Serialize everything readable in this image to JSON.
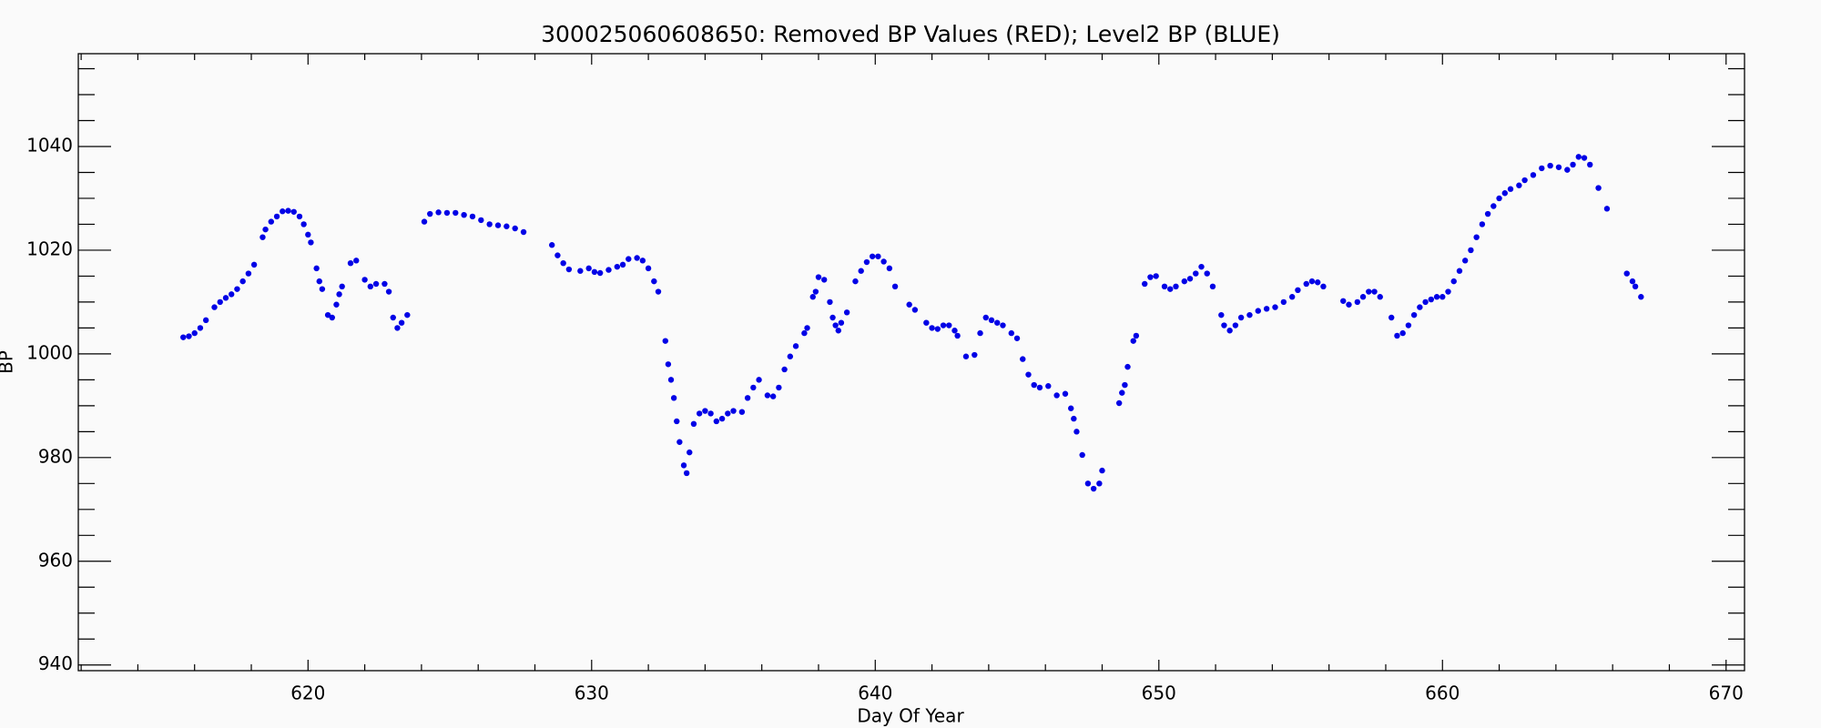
{
  "chart_data": {
    "type": "scatter",
    "title": "300025060608650: Removed BP Values (RED); Level2 BP (BLUE)",
    "xlabel": "Day Of Year",
    "ylabel": "BP",
    "xlim": [
      611.9,
      670.65
    ],
    "ylim": [
      938.9,
      1057.9
    ],
    "xticks": [
      620,
      630,
      640,
      650,
      660,
      670
    ],
    "yticks": [
      940,
      960,
      980,
      1000,
      1020,
      1040
    ],
    "xminorticks": [
      612,
      614,
      616,
      618,
      622,
      624,
      626,
      628,
      632,
      634,
      636,
      638,
      642,
      644,
      646,
      648,
      652,
      654,
      656,
      658,
      662,
      664,
      666,
      668
    ],
    "yminorticks": [
      945,
      950,
      955,
      965,
      970,
      975,
      985,
      990,
      995,
      1005,
      1010,
      1015,
      1025,
      1030,
      1035,
      1045,
      1050,
      1055
    ],
    "grid": false,
    "series": [
      {
        "color": "#0000e6",
        "x": [
          615.6,
          615.8,
          616.0,
          616.2,
          616.4,
          616.7,
          616.9,
          617.1,
          617.3,
          617.5,
          617.7,
          617.9,
          618.1,
          618.4,
          618.5,
          618.7,
          618.9,
          619.1,
          619.3,
          619.5,
          619.7,
          619.85,
          620.0,
          620.1,
          620.3,
          620.4,
          620.5,
          620.7,
          620.85,
          621.0,
          621.1,
          621.2,
          621.5,
          621.7,
          622.0,
          622.2,
          622.4,
          622.7,
          622.85,
          623.0,
          623.15,
          623.3,
          623.5,
          624.1,
          624.3,
          624.6,
          624.9,
          625.2,
          625.5,
          625.8,
          626.1,
          626.4,
          626.7,
          627.0,
          627.3,
          627.6,
          628.6,
          628.8,
          629.0,
          629.2,
          629.6,
          629.9,
          630.1,
          630.3,
          630.6,
          630.9,
          631.1,
          631.3,
          631.6,
          631.8,
          632.0,
          632.2,
          632.35,
          632.6,
          632.7,
          632.8,
          632.9,
          633.0,
          633.1,
          633.25,
          633.35,
          633.45,
          633.6,
          633.8,
          634.0,
          634.2,
          634.4,
          634.6,
          634.8,
          635.0,
          635.3,
          635.5,
          635.7,
          635.9,
          636.2,
          636.4,
          636.6,
          636.8,
          637.0,
          637.2,
          637.5,
          637.6,
          637.8,
          637.9,
          638.0,
          638.2,
          638.4,
          638.5,
          638.6,
          638.7,
          638.8,
          639.0,
          639.3,
          639.5,
          639.7,
          639.9,
          640.1,
          640.3,
          640.5,
          640.7,
          641.2,
          641.4,
          641.8,
          642.0,
          642.2,
          642.4,
          642.6,
          642.8,
          642.9,
          643.2,
          643.5,
          643.7,
          643.9,
          644.1,
          644.3,
          644.5,
          644.8,
          645.0,
          645.2,
          645.4,
          645.6,
          645.8,
          646.1,
          646.4,
          646.7,
          646.9,
          647.0,
          647.1,
          647.3,
          647.5,
          647.7,
          647.9,
          648.0,
          648.6,
          648.7,
          648.8,
          648.9,
          649.1,
          649.2,
          649.5,
          649.7,
          649.9,
          650.2,
          650.4,
          650.6,
          650.9,
          651.1,
          651.3,
          651.5,
          651.7,
          651.9,
          652.2,
          652.3,
          652.5,
          652.7,
          652.9,
          653.2,
          653.5,
          653.8,
          654.1,
          654.4,
          654.7,
          654.9,
          655.2,
          655.4,
          655.6,
          655.8,
          656.5,
          656.7,
          657.0,
          657.2,
          657.4,
          657.6,
          657.8,
          658.2,
          658.4,
          658.6,
          658.8,
          659.0,
          659.2,
          659.4,
          659.6,
          659.8,
          660.0,
          660.2,
          660.4,
          660.6,
          660.8,
          661.0,
          661.2,
          661.4,
          661.6,
          661.8,
          662.0,
          662.2,
          662.4,
          662.7,
          662.9,
          663.2,
          663.5,
          663.8,
          664.1,
          664.4,
          664.6,
          664.8,
          665.0,
          665.2,
          665.5,
          665.8,
          666.5,
          666.7,
          666.8,
          667.0
        ],
        "values": [
          1003.2,
          1003.4,
          1004,
          1005,
          1006.5,
          1009,
          1010,
          1010.8,
          1011.5,
          1012.5,
          1014,
          1015.5,
          1017.2,
          1022.5,
          1024,
          1025.5,
          1026.5,
          1027.5,
          1027.6,
          1027.4,
          1026.5,
          1025,
          1023,
          1021.5,
          1016.5,
          1014,
          1012.5,
          1007.5,
          1007,
          1009.5,
          1011.5,
          1013,
          1017.5,
          1018,
          1014.3,
          1013,
          1013.5,
          1013.5,
          1012,
          1007,
          1005,
          1006,
          1007.5,
          1025.5,
          1027,
          1027.3,
          1027.2,
          1027.2,
          1026.8,
          1026.5,
          1025.8,
          1025,
          1024.8,
          1024.6,
          1024.2,
          1023.5,
          1021,
          1019,
          1017.5,
          1016.3,
          1016,
          1016.5,
          1015.8,
          1015.6,
          1016.2,
          1016.8,
          1017.2,
          1018.3,
          1018.5,
          1018,
          1016.5,
          1014,
          1012,
          1002.5,
          998,
          995,
          991.5,
          987,
          983,
          978.5,
          977,
          981,
          986.5,
          988.5,
          989,
          988.5,
          987,
          987.5,
          988.5,
          989,
          988.8,
          991.5,
          993.5,
          995,
          992,
          991.8,
          993.5,
          997,
          999.5,
          1001.5,
          1004,
          1005,
          1011,
          1012,
          1014.8,
          1014.3,
          1010,
          1007,
          1005.5,
          1004.5,
          1006,
          1008,
          1014,
          1016,
          1017.7,
          1018.8,
          1018.8,
          1017.8,
          1016.5,
          1013,
          1009.5,
          1008.5,
          1006,
          1005,
          1004.8,
          1005.5,
          1005.5,
          1004.5,
          1003.5,
          999.5,
          999.8,
          1004,
          1007,
          1006.5,
          1006,
          1005.5,
          1004,
          1003,
          999,
          996,
          994,
          993.5,
          993.8,
          992,
          992.3,
          989.5,
          987.5,
          985,
          980.5,
          975,
          974,
          975,
          977.5,
          990.5,
          992.5,
          994,
          997.5,
          1002.5,
          1003.5,
          1013.5,
          1014.8,
          1015,
          1013,
          1012.5,
          1013,
          1014,
          1014.5,
          1015.5,
          1016.8,
          1015.5,
          1013,
          1007.5,
          1005.5,
          1004.5,
          1005.5,
          1007,
          1007.5,
          1008.3,
          1008.7,
          1009,
          1010,
          1011,
          1012.3,
          1013.5,
          1014,
          1013.8,
          1013,
          1010.2,
          1009.5,
          1010,
          1011,
          1012,
          1012,
          1011,
          1007,
          1003.5,
          1004,
          1005.5,
          1007.5,
          1009,
          1010,
          1010.5,
          1011,
          1011,
          1012,
          1014,
          1016,
          1018,
          1020,
          1022.5,
          1025,
          1027,
          1028.5,
          1030,
          1031,
          1031.8,
          1032.5,
          1033.5,
          1034.5,
          1035.8,
          1036.3,
          1036,
          1035.5,
          1036.5,
          1038,
          1037.8,
          1036.5,
          1032,
          1028,
          1015.5,
          1014,
          1013,
          1011
        ]
      }
    ]
  }
}
